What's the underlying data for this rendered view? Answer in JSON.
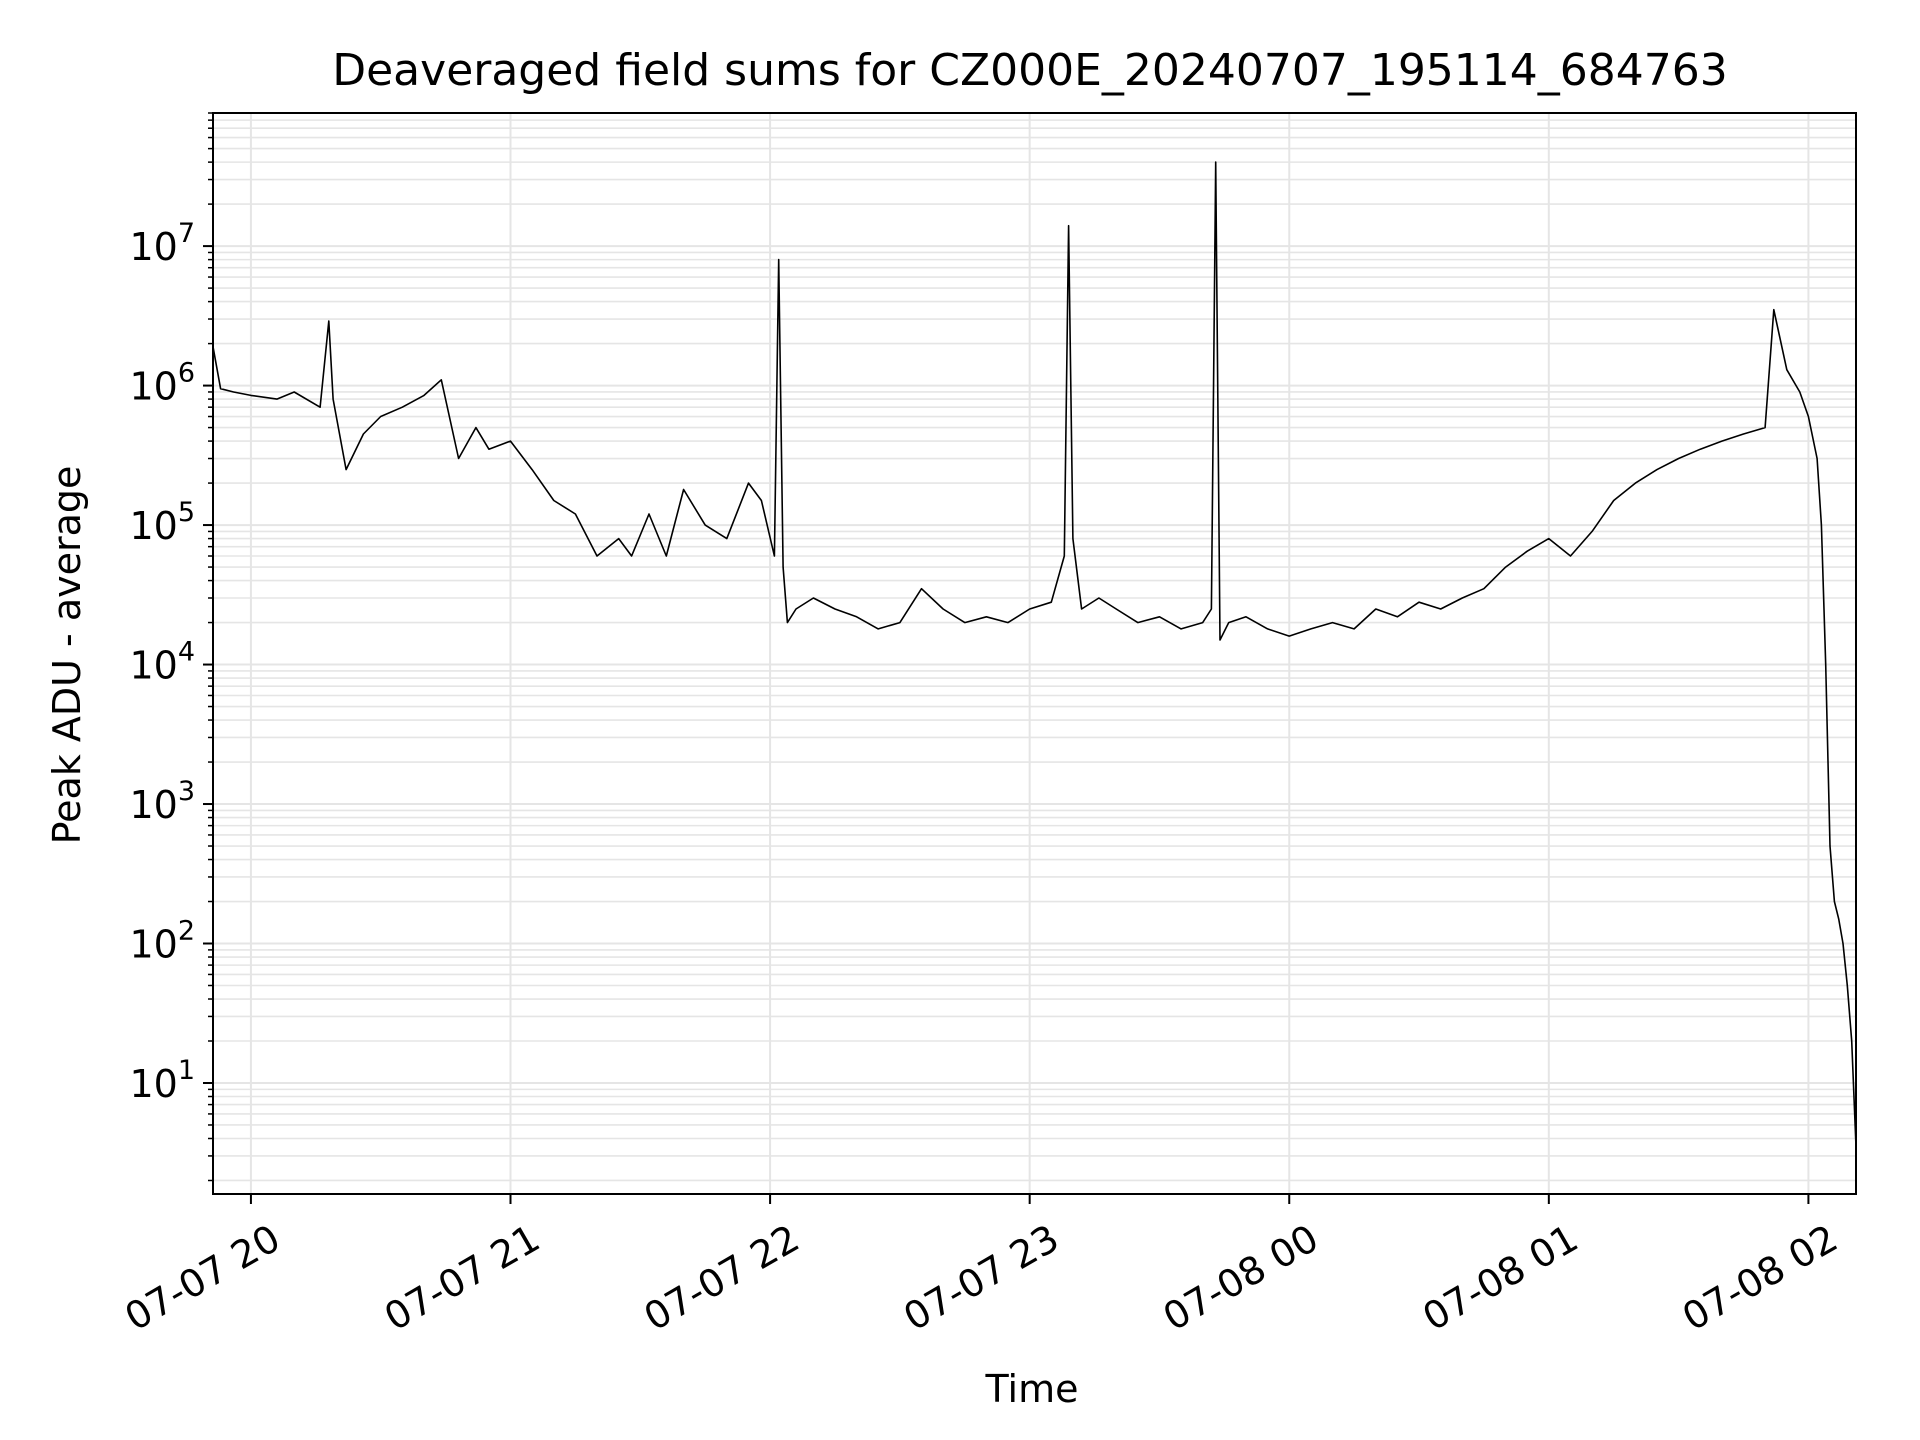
{
  "chart_data": {
    "type": "line",
    "title": "Deaveraged field sums for CZ000E_20240707_195114_684763",
    "xlabel": "Time",
    "ylabel": "Peak ADU - average",
    "yscale": "log",
    "grid": true,
    "grid_minor": true,
    "line_color": "#000000",
    "grid_color": "#e5e5e5",
    "xlim": [
      "2024-07-07 19:51:14",
      "2024-07-08 02:11:00"
    ],
    "ylim": [
      1.6,
      90000000
    ],
    "xticks": [
      {
        "value": "2024-07-07 20:00",
        "label": "07-07 20"
      },
      {
        "value": "2024-07-07 21:00",
        "label": "07-07 21"
      },
      {
        "value": "2024-07-07 22:00",
        "label": "07-07 22"
      },
      {
        "value": "2024-07-07 23:00",
        "label": "07-07 23"
      },
      {
        "value": "2024-07-08 00:00",
        "label": "07-08 00"
      },
      {
        "value": "2024-07-08 01:00",
        "label": "07-08 01"
      },
      {
        "value": "2024-07-08 02:00",
        "label": "07-08 02"
      }
    ],
    "yticks": [
      {
        "value": 10,
        "base": "10",
        "exp": "1"
      },
      {
        "value": 100,
        "base": "10",
        "exp": "2"
      },
      {
        "value": 1000,
        "base": "10",
        "exp": "3"
      },
      {
        "value": 10000,
        "base": "10",
        "exp": "4"
      },
      {
        "value": 100000,
        "base": "10",
        "exp": "5"
      },
      {
        "value": 1000000,
        "base": "10",
        "exp": "6"
      },
      {
        "value": 10000000,
        "base": "10",
        "exp": "7"
      }
    ],
    "series": [
      {
        "x": [
          "2024-07-07 19:51:14",
          "2024-07-07 19:53",
          "2024-07-07 19:56",
          "2024-07-07 20:00",
          "2024-07-07 20:06",
          "2024-07-07 20:10",
          "2024-07-07 20:16",
          "2024-07-07 20:18",
          "2024-07-07 20:19",
          "2024-07-07 20:22",
          "2024-07-07 20:26",
          "2024-07-07 20:30",
          "2024-07-07 20:35",
          "2024-07-07 20:40",
          "2024-07-07 20:44",
          "2024-07-07 20:48",
          "2024-07-07 20:52",
          "2024-07-07 20:55",
          "2024-07-07 21:00",
          "2024-07-07 21:05",
          "2024-07-07 21:10",
          "2024-07-07 21:15",
          "2024-07-07 21:20",
          "2024-07-07 21:25",
          "2024-07-07 21:28",
          "2024-07-07 21:32",
          "2024-07-07 21:36",
          "2024-07-07 21:40",
          "2024-07-07 21:45",
          "2024-07-07 21:50",
          "2024-07-07 21:55",
          "2024-07-07 21:58",
          "2024-07-07 22:01",
          "2024-07-07 22:02",
          "2024-07-07 22:03",
          "2024-07-07 22:04",
          "2024-07-07 22:06",
          "2024-07-07 22:10",
          "2024-07-07 22:15",
          "2024-07-07 22:20",
          "2024-07-07 22:25",
          "2024-07-07 22:30",
          "2024-07-07 22:35",
          "2024-07-07 22:40",
          "2024-07-07 22:45",
          "2024-07-07 22:50",
          "2024-07-07 22:55",
          "2024-07-07 23:00",
          "2024-07-07 23:05",
          "2024-07-07 23:08",
          "2024-07-07 23:09",
          "2024-07-07 23:10",
          "2024-07-07 23:12",
          "2024-07-07 23:16",
          "2024-07-07 23:20",
          "2024-07-07 23:25",
          "2024-07-07 23:30",
          "2024-07-07 23:35",
          "2024-07-07 23:40",
          "2024-07-07 23:42",
          "2024-07-07 23:43",
          "2024-07-07 23:44",
          "2024-07-07 23:46",
          "2024-07-07 23:50",
          "2024-07-07 23:55",
          "2024-07-08 00:00",
          "2024-07-08 00:05",
          "2024-07-08 00:10",
          "2024-07-08 00:15",
          "2024-07-08 00:20",
          "2024-07-08 00:25",
          "2024-07-08 00:30",
          "2024-07-08 00:35",
          "2024-07-08 00:40",
          "2024-07-08 00:45",
          "2024-07-08 00:50",
          "2024-07-08 00:55",
          "2024-07-08 01:00",
          "2024-07-08 01:05",
          "2024-07-08 01:10",
          "2024-07-08 01:15",
          "2024-07-08 01:20",
          "2024-07-08 01:25",
          "2024-07-08 01:30",
          "2024-07-08 01:35",
          "2024-07-08 01:40",
          "2024-07-08 01:45",
          "2024-07-08 01:50",
          "2024-07-08 01:52",
          "2024-07-08 01:55",
          "2024-07-08 01:58",
          "2024-07-08 02:00",
          "2024-07-08 02:02",
          "2024-07-08 02:03",
          "2024-07-08 02:04",
          "2024-07-08 02:05",
          "2024-07-08 02:06",
          "2024-07-08 02:07",
          "2024-07-08 02:08",
          "2024-07-08 02:09",
          "2024-07-08 02:10",
          "2024-07-08 02:11"
        ],
        "y": [
          1900000,
          950000,
          900000,
          850000,
          800000,
          900000,
          700000,
          2900000,
          800000,
          250000,
          450000,
          600000,
          700000,
          850000,
          1100000,
          300000,
          500000,
          350000,
          400000,
          250000,
          150000,
          120000,
          60000,
          80000,
          60000,
          120000,
          60000,
          180000,
          100000,
          80000,
          200000,
          150000,
          60000,
          8000000,
          50000,
          20000,
          25000,
          30000,
          25000,
          22000,
          18000,
          20000,
          35000,
          25000,
          20000,
          22000,
          20000,
          25000,
          28000,
          60000,
          14000000,
          80000,
          25000,
          30000,
          25000,
          20000,
          22000,
          18000,
          20000,
          25000,
          40000000,
          15000,
          20000,
          22000,
          18000,
          16000,
          18000,
          20000,
          18000,
          25000,
          22000,
          28000,
          25000,
          30000,
          35000,
          50000,
          65000,
          80000,
          60000,
          90000,
          150000,
          200000,
          250000,
          300000,
          350000,
          400000,
          450000,
          500000,
          3500000,
          1300000,
          900000,
          600000,
          300000,
          100000,
          10000,
          500,
          200,
          150,
          100,
          50,
          20,
          3.5
        ]
      }
    ]
  }
}
